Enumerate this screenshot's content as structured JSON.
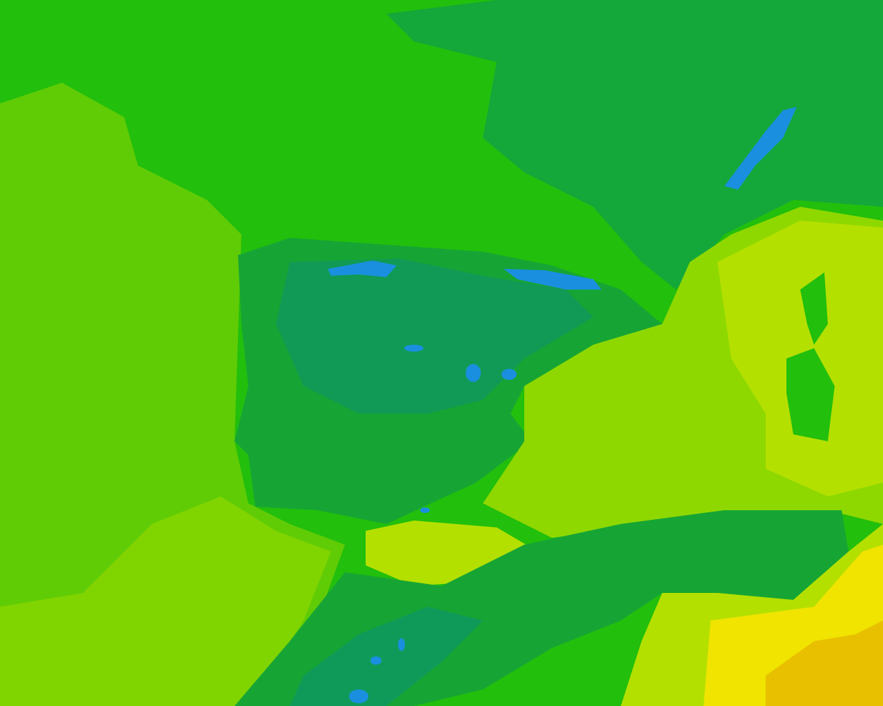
{
  "map": {
    "type": "temperature-field",
    "palette": {
      "coldest": "#1a8fe0",
      "cold": "#0f9a5a",
      "cool": "#14a73a",
      "mild": "#22bf0c",
      "mild_warm": "#5fcc06",
      "warm": "#8ed800",
      "warmer": "#b4e000",
      "hot": "#f0e400",
      "hottest": "#e8c000"
    }
  }
}
